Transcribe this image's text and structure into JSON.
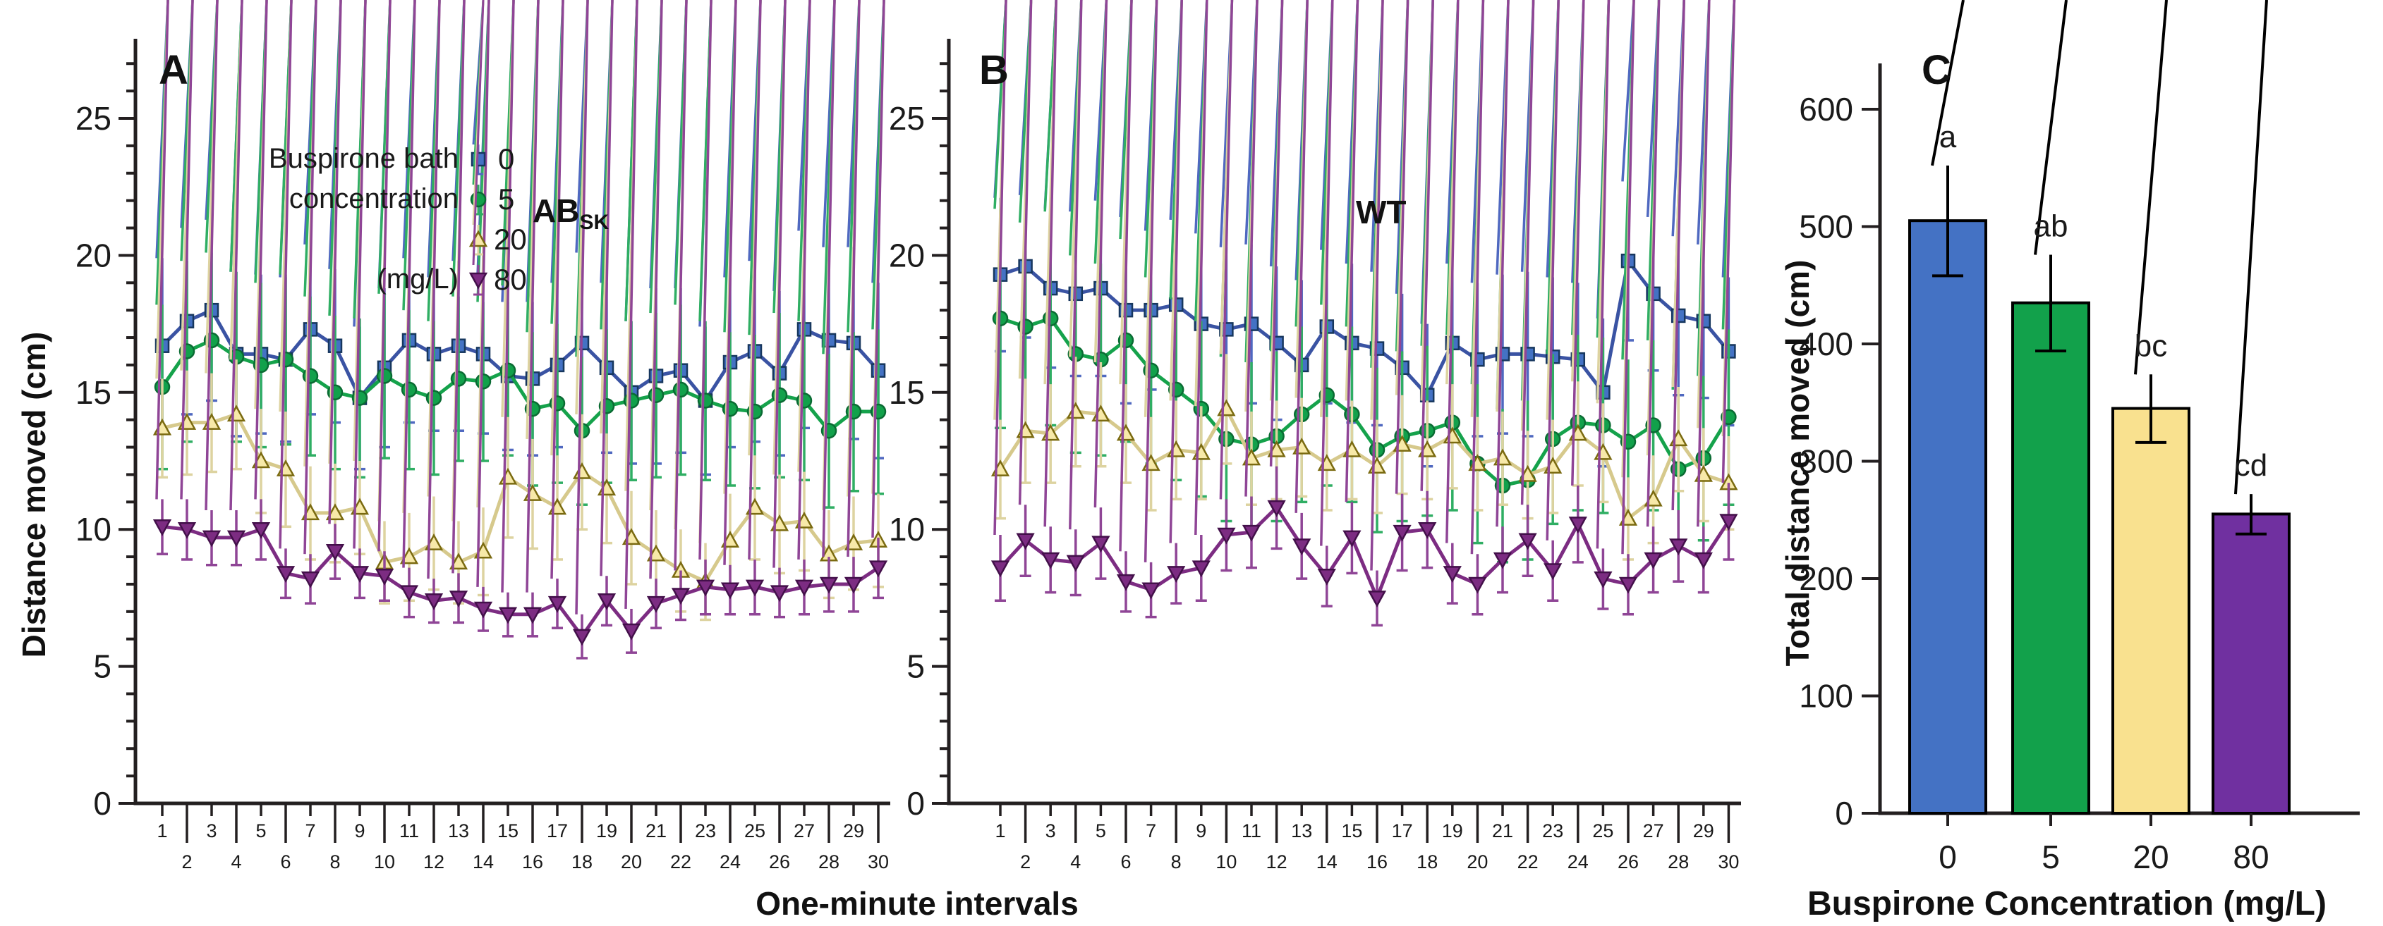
{
  "figure": {
    "background": "#ffffff",
    "axis_color": "#231f20"
  },
  "labels": {
    "shared_xlabel": "One-minute intervals"
  },
  "legend": {
    "line1": "Buspirone bath",
    "line2": "concentration",
    "line3": "(mg/L)",
    "items": [
      {
        "label": "0"
      },
      {
        "label": "5"
      },
      {
        "label": "20"
      },
      {
        "label": "80"
      }
    ]
  },
  "chart_data": [
    {
      "id": "A",
      "type": "line",
      "panel_letter": "A",
      "title": "AB",
      "title_sub": "SK",
      "ylabel": "Distance moved (cm)",
      "xlabel": "One-minute intervals",
      "ylim": [
        0,
        27.9
      ],
      "yticks_major": [
        0,
        5,
        10,
        15,
        20,
        25
      ],
      "grid": false,
      "legend_position": "upper-left",
      "x": [
        1,
        2,
        3,
        4,
        5,
        6,
        7,
        8,
        9,
        10,
        11,
        12,
        13,
        14,
        15,
        16,
        17,
        18,
        19,
        20,
        21,
        22,
        23,
        24,
        25,
        26,
        27,
        28,
        29,
        30
      ],
      "series": [
        {
          "name": "0",
          "marker": "square",
          "color": "#3a53a3",
          "marker_fill": "#4472c4",
          "marker_edge": "#17375e",
          "err_color": "#4f68c0",
          "values": [
            16.7,
            17.6,
            18.0,
            16.4,
            16.4,
            16.2,
            17.3,
            16.7,
            14.8,
            15.9,
            16.9,
            16.4,
            16.7,
            16.4,
            15.6,
            15.5,
            16.0,
            16.8,
            15.9,
            15.0,
            15.6,
            15.8,
            14.7,
            16.1,
            16.5,
            15.7,
            17.3,
            16.9,
            16.8,
            15.8
          ],
          "err": [
            3.2,
            3.4,
            3.3,
            3.0,
            2.9,
            3.0,
            3.1,
            2.8,
            2.6,
            2.9,
            3.0,
            2.8,
            3.1,
            2.9,
            2.7,
            2.8,
            3.0,
            3.3,
            3.1,
            2.6,
            3.2,
            3.0,
            2.7,
            3.1,
            3.3,
            3.0,
            3.6,
            3.4,
            3.5,
            3.2
          ]
        },
        {
          "name": "5",
          "marker": "circle",
          "color": "#15a24b",
          "marker_fill": "#12a14b",
          "marker_edge": "#0a6b33",
          "err_color": "#2fae63",
          "values": [
            15.2,
            16.5,
            16.9,
            16.3,
            16.0,
            16.2,
            15.6,
            15.0,
            14.8,
            15.6,
            15.1,
            14.8,
            15.5,
            15.4,
            15.8,
            14.4,
            14.6,
            13.6,
            14.5,
            14.7,
            14.9,
            15.1,
            14.7,
            14.4,
            14.3,
            14.9,
            14.7,
            13.6,
            14.3,
            14.3
          ],
          "err": [
            3.0,
            3.3,
            3.2,
            3.1,
            3.0,
            3.1,
            2.9,
            2.8,
            2.9,
            3.0,
            2.9,
            2.8,
            3.0,
            2.9,
            3.1,
            2.8,
            2.9,
            2.7,
            2.8,
            2.9,
            3.0,
            3.1,
            2.9,
            2.8,
            2.8,
            3.0,
            2.9,
            2.8,
            2.9,
            3.0
          ]
        },
        {
          "name": "20",
          "marker": "triangle-up",
          "color": "#d6c98c",
          "marker_fill": "#f7e9a8",
          "marker_edge": "#7a6a10",
          "err_color": "#ddd3a0",
          "values": [
            13.7,
            13.9,
            13.9,
            14.2,
            12.5,
            12.2,
            10.6,
            10.6,
            10.8,
            8.8,
            9.0,
            9.5,
            8.8,
            9.2,
            11.9,
            11.3,
            10.8,
            12.1,
            11.5,
            9.7,
            9.1,
            8.5,
            8.1,
            9.6,
            10.8,
            10.2,
            10.3,
            9.1,
            9.5,
            9.6
          ],
          "err": [
            1.8,
            1.9,
            1.8,
            2.0,
            1.9,
            2.1,
            1.7,
            1.8,
            1.7,
            1.5,
            1.6,
            1.7,
            1.5,
            1.6,
            2.2,
            2.0,
            1.9,
            2.1,
            2.0,
            1.7,
            1.6,
            1.5,
            1.4,
            1.7,
            1.9,
            1.8,
            1.8,
            1.6,
            1.7,
            1.7
          ]
        },
        {
          "name": "80",
          "marker": "triangle-down",
          "color": "#7c2c82",
          "marker_fill": "#7c2c82",
          "marker_edge": "#43104a",
          "err_color": "#8f4596",
          "values": [
            10.1,
            10.0,
            9.7,
            9.7,
            10.0,
            8.4,
            8.2,
            9.2,
            8.4,
            8.3,
            7.7,
            7.4,
            7.5,
            7.1,
            6.9,
            6.9,
            7.3,
            6.1,
            7.4,
            6.3,
            7.3,
            7.6,
            7.9,
            7.8,
            7.9,
            7.7,
            7.9,
            8.0,
            8.0,
            8.6
          ],
          "err": [
            1.0,
            1.1,
            1.0,
            1.0,
            1.1,
            0.9,
            0.9,
            1.0,
            0.9,
            0.9,
            0.9,
            0.8,
            0.9,
            0.8,
            0.8,
            0.8,
            0.9,
            0.8,
            0.9,
            0.8,
            0.9,
            0.9,
            1.0,
            0.9,
            1.0,
            0.9,
            1.0,
            1.0,
            1.0,
            1.1
          ]
        }
      ]
    },
    {
      "id": "B",
      "type": "line",
      "panel_letter": "B",
      "title": "WT",
      "ylabel": "",
      "xlabel": "One-minute intervals",
      "ylim": [
        0,
        27.9
      ],
      "yticks_major": [
        0,
        5,
        10,
        15,
        20,
        25
      ],
      "grid": false,
      "x": [
        1,
        2,
        3,
        4,
        5,
        6,
        7,
        8,
        9,
        10,
        11,
        12,
        13,
        14,
        15,
        16,
        17,
        18,
        19,
        20,
        21,
        22,
        23,
        24,
        25,
        26,
        27,
        28,
        29,
        30
      ],
      "series": [
        {
          "name": "0",
          "marker": "square",
          "color": "#3a53a3",
          "marker_fill": "#4472c4",
          "marker_edge": "#17375e",
          "err_color": "#4f68c0",
          "values": [
            19.3,
            19.6,
            18.8,
            18.6,
            18.8,
            18.0,
            18.0,
            18.2,
            17.5,
            17.3,
            17.5,
            16.8,
            16.0,
            17.4,
            16.8,
            16.6,
            15.9,
            14.9,
            16.8,
            16.2,
            16.4,
            16.4,
            16.3,
            16.2,
            15.0,
            19.8,
            18.6,
            17.8,
            17.6,
            16.5
          ],
          "err": [
            2.8,
            2.6,
            2.9,
            3.0,
            3.2,
            3.4,
            2.9,
            3.1,
            3.3,
            3.0,
            2.9,
            2.8,
            3.1,
            2.8,
            2.9,
            2.8,
            2.7,
            2.6,
            2.9,
            2.8,
            2.9,
            3.0,
            2.9,
            2.8,
            2.7,
            2.9,
            2.8,
            2.9,
            2.8,
            2.7
          ]
        },
        {
          "name": "5",
          "marker": "circle",
          "color": "#15a24b",
          "marker_fill": "#12a14b",
          "marker_edge": "#0a6b33",
          "err_color": "#2fae63",
          "values": [
            17.7,
            17.4,
            17.7,
            16.4,
            16.2,
            16.9,
            15.8,
            15.1,
            14.4,
            13.3,
            13.1,
            13.4,
            14.2,
            14.9,
            14.2,
            12.9,
            13.4,
            13.6,
            13.9,
            12.4,
            11.6,
            11.8,
            13.3,
            13.9,
            13.8,
            13.2,
            13.8,
            12.2,
            12.6,
            14.1
          ],
          "err": [
            4.0,
            3.8,
            3.9,
            3.6,
            3.5,
            3.7,
            3.4,
            3.3,
            3.2,
            3.0,
            3.0,
            3.1,
            3.2,
            3.3,
            3.2,
            3.0,
            3.1,
            3.1,
            3.2,
            2.9,
            2.8,
            2.9,
            3.1,
            3.2,
            3.2,
            3.0,
            3.1,
            2.9,
            3.0,
            3.2
          ]
        },
        {
          "name": "20",
          "marker": "triangle-up",
          "color": "#d6c98c",
          "marker_fill": "#f7e9a8",
          "marker_edge": "#7a6a10",
          "err_color": "#ddd3a0",
          "values": [
            12.2,
            13.6,
            13.5,
            14.3,
            14.2,
            13.5,
            12.4,
            12.9,
            12.8,
            14.4,
            12.6,
            12.9,
            13.0,
            12.4,
            12.9,
            12.3,
            13.1,
            12.9,
            13.4,
            12.4,
            12.6,
            12.0,
            12.3,
            13.5,
            12.8,
            10.4,
            11.1,
            13.3,
            12.0,
            11.7
          ],
          "err": [
            1.8,
            1.9,
            1.8,
            2.0,
            1.9,
            1.8,
            1.7,
            1.8,
            1.7,
            2.0,
            1.7,
            1.8,
            1.8,
            1.7,
            1.8,
            1.7,
            1.8,
            1.8,
            1.9,
            1.7,
            1.7,
            1.6,
            1.7,
            1.9,
            1.8,
            1.5,
            1.6,
            1.9,
            1.7,
            1.7
          ]
        },
        {
          "name": "80",
          "marker": "triangle-down",
          "color": "#7c2c82",
          "marker_fill": "#7c2c82",
          "marker_edge": "#43104a",
          "err_color": "#8f4596",
          "values": [
            8.6,
            9.6,
            8.9,
            8.8,
            9.5,
            8.1,
            7.8,
            8.4,
            8.6,
            9.8,
            9.9,
            10.8,
            9.4,
            8.3,
            9.7,
            7.5,
            9.9,
            10.0,
            8.4,
            8.0,
            8.9,
            9.6,
            8.5,
            10.2,
            8.2,
            8.0,
            8.9,
            9.4,
            8.9,
            10.3
          ],
          "err": [
            1.2,
            1.3,
            1.2,
            1.2,
            1.3,
            1.1,
            1.0,
            1.1,
            1.2,
            1.3,
            1.3,
            1.5,
            1.2,
            1.1,
            1.3,
            1.0,
            1.4,
            1.4,
            1.1,
            1.1,
            1.2,
            1.3,
            1.1,
            1.4,
            1.1,
            1.1,
            1.2,
            1.3,
            1.2,
            1.4
          ]
        }
      ]
    },
    {
      "id": "C",
      "type": "bar",
      "panel_letter": "C",
      "ylabel": "Total distance moved (cm)",
      "xlabel": "Buspirone Concentration (mg/L)",
      "ylim": [
        0,
        640
      ],
      "yticks": [
        0,
        100,
        200,
        300,
        400,
        500,
        600
      ],
      "grid": false,
      "categories": [
        "0",
        "5",
        "20",
        "80"
      ],
      "values": [
        505,
        435,
        345,
        255
      ],
      "errors": [
        47,
        41,
        29,
        17
      ],
      "sig_letters": [
        "a",
        "ab",
        "bc",
        "cd"
      ],
      "bar_colors": [
        "#4472c4",
        "#12a14b",
        "#f9e18f",
        "#7030a0"
      ],
      "bar_edge": "#000000"
    }
  ]
}
